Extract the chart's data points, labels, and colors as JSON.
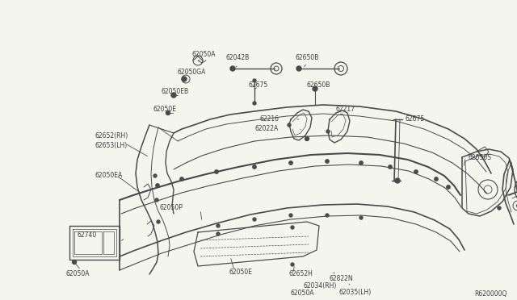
{
  "bg_color": "#f5f5f0",
  "line_color": "#4a4a4a",
  "text_color": "#3a3a3a",
  "ref_code": "R620000Q",
  "figsize": [
    6.4,
    3.72
  ],
  "dpi": 100,
  "xlim": [
    0,
    640
  ],
  "ylim": [
    0,
    372
  ]
}
